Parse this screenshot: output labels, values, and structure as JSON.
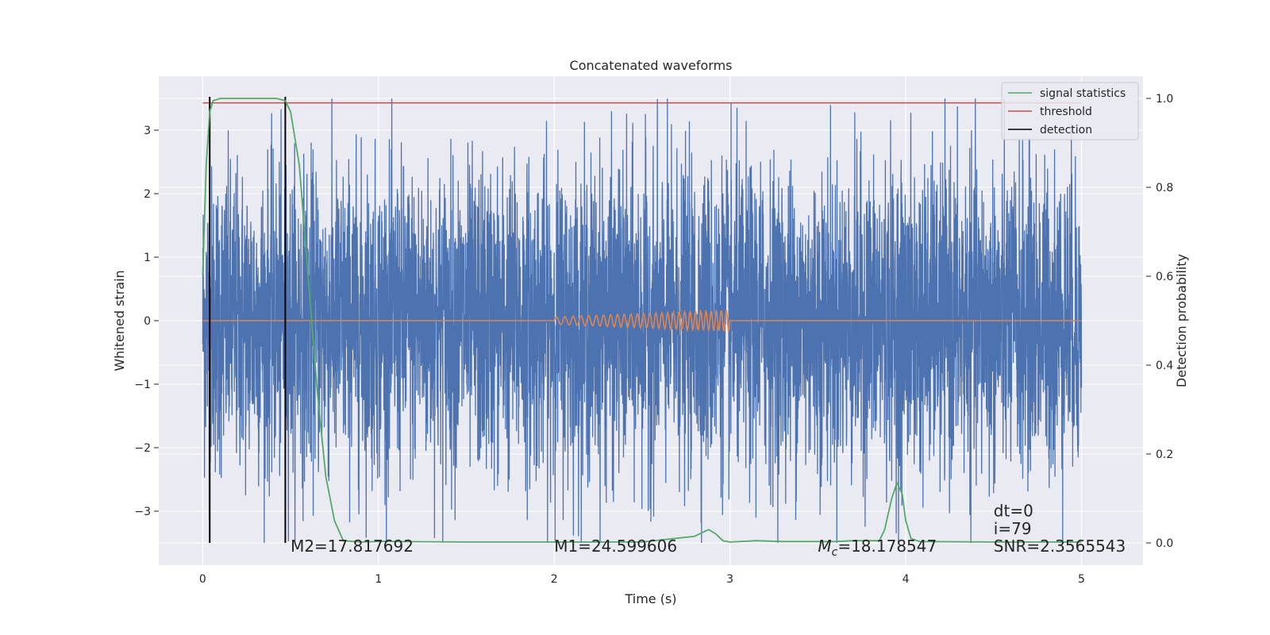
{
  "chart_data": {
    "type": "line",
    "title": "Concatenated waveforms",
    "xlabel": "Time (s)",
    "ylabel": "Whitened strain",
    "ylabel_right": "Detection probability",
    "xlim": [
      -0.25,
      5.35
    ],
    "ylim": [
      -3.85,
      3.85
    ],
    "ylim_right": [
      -0.05,
      1.05
    ],
    "xticks": [
      0,
      1,
      2,
      3,
      4,
      5
    ],
    "xtick_labels": [
      "0",
      "1",
      "2",
      "3",
      "4",
      "5"
    ],
    "yticks": [
      -3,
      -2,
      -1,
      0,
      1,
      2,
      3
    ],
    "ytick_labels": [
      "−3",
      "−2",
      "−1",
      "0",
      "1",
      "2",
      "3"
    ],
    "yticks_right": [
      0.0,
      0.2,
      0.4,
      0.6,
      0.8,
      1.0
    ],
    "ytick_right_labels": [
      "0.0",
      "0.2",
      "0.4",
      "0.6",
      "0.8",
      "1.0"
    ],
    "grid": true,
    "legend_position": "top-right",
    "series": [
      {
        "name": "",
        "axis": "left",
        "color": "#4c72b0",
        "kind": "noise",
        "x_range": [
          0,
          5
        ],
        "amplitude_typical": 1.2,
        "amplitude_peak": 3.5
      },
      {
        "name": "",
        "axis": "left",
        "color": "#dd8452",
        "kind": "chirp",
        "x": [
          0,
          2,
          2.5,
          3,
          5
        ],
        "y": [
          0,
          0,
          0,
          0,
          0
        ],
        "chirp_range": [
          2.0,
          3.0
        ],
        "chirp_amplitude": [
          0.06,
          0.17
        ]
      },
      {
        "name": "signal statistics",
        "axis": "right",
        "color": "#55a868",
        "x": [
          0,
          0.02,
          0.04,
          0.06,
          0.1,
          0.2,
          0.3,
          0.42,
          0.47,
          0.5,
          0.55,
          0.6,
          0.65,
          0.7,
          0.75,
          0.8,
          0.9,
          1.0,
          1.05,
          1.1,
          1.5,
          2.0,
          2.5,
          2.8,
          2.85,
          2.88,
          2.92,
          2.96,
          3.0,
          3.15,
          3.3,
          3.6,
          3.7,
          3.85,
          3.88,
          3.92,
          3.95,
          3.98,
          4.0,
          4.03,
          4.08,
          4.5,
          5.0
        ],
        "y": [
          0.6,
          0.85,
          0.97,
          0.995,
          1.0,
          1.0,
          1.0,
          1.0,
          0.995,
          0.97,
          0.85,
          0.6,
          0.35,
          0.15,
          0.05,
          0.005,
          0.002,
          0.003,
          0.004,
          0.003,
          0.002,
          0.002,
          0.002,
          0.015,
          0.025,
          0.03,
          0.02,
          0.005,
          0.002,
          0.005,
          0.003,
          0.003,
          0.005,
          0.005,
          0.03,
          0.1,
          0.135,
          0.11,
          0.05,
          0.01,
          0.003,
          0.002,
          0.002
        ]
      },
      {
        "name": "threshold",
        "axis": "right",
        "color": "#c44e52",
        "x": [
          0,
          5
        ],
        "y": [
          0.99,
          0.99
        ]
      },
      {
        "name": "detection",
        "axis": "right",
        "color": "#000000",
        "kind": "vlines",
        "x": [
          0.04,
          0.47
        ],
        "y_range": [
          0.0,
          1.0
        ]
      }
    ],
    "annotations": [
      {
        "text": "M2=17.817692",
        "x": 0.5,
        "y": -0.02
      },
      {
        "text": "M1=24.599606",
        "x": 2.0,
        "y": -0.02
      },
      {
        "text": "=18.178547",
        "x": 3.5,
        "y": -0.02,
        "prefix": "M",
        "prefix_sub": "c"
      },
      {
        "text": "dt=0",
        "x": 4.5,
        "y": 0.06
      },
      {
        "text": "i=79",
        "x": 4.5,
        "y": 0.02
      },
      {
        "text": "SNR=2.3565543",
        "x": 4.5,
        "y": -0.02
      }
    ]
  },
  "colors": {
    "plot_bg": "#eaeaf2",
    "grid": "#ffffff",
    "noise": "#4c72b0",
    "chirp": "#dd8452",
    "stat": "#55a868",
    "threshold": "#c44e52",
    "detection": "#000000"
  }
}
